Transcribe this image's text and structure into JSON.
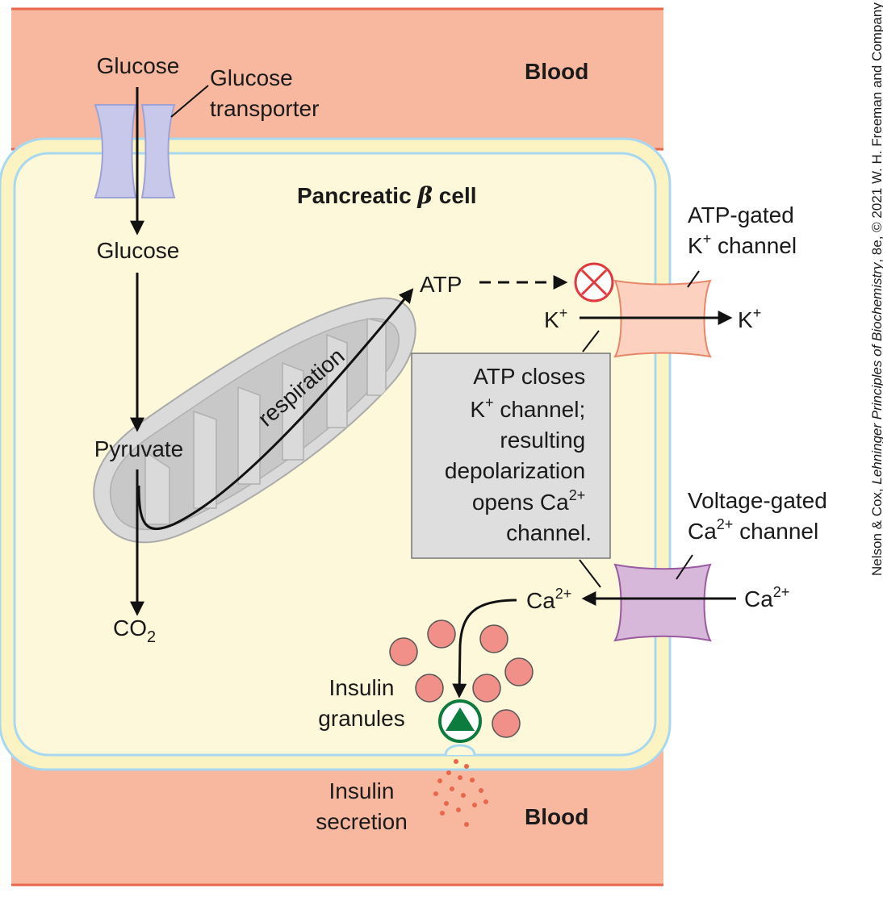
{
  "colors": {
    "blood": "#f8b8a0",
    "blood_edge": "#e8664a",
    "cytoplasm": "#fdf8da",
    "membrane_outer": "#fbf3c2",
    "membrane_line": "#a8d8f0",
    "glucose_transporter": "#c7c8ea",
    "k_channel": "#fcd1c0",
    "ca_channel": "#d7b8da",
    "mitochondrion": "#d9d9d9",
    "granule": "#f09088",
    "block_red": "#e03a3e",
    "secretion_green": "#0c7b3e",
    "note_box": "#dedede"
  },
  "labels": {
    "blood_top": "Blood",
    "blood_bottom": "Blood",
    "glucose_outside": "Glucose",
    "glucose_transporter_line1": "Glucose",
    "glucose_transporter_line2": "transporter",
    "cell_title_prefix": "Pancreatic ",
    "cell_title_beta": "β",
    "cell_title_suffix": " cell",
    "glucose_inside": "Glucose",
    "pyruvate": "Pyruvate",
    "co2_main": "CO",
    "co2_sub": "2",
    "respiration": "respiration",
    "atp": "ATP",
    "k_channel_line1": "ATP-gated",
    "k_channel_line2_main": "K",
    "k_channel_line2_sup": "+",
    "k_channel_line2_rest": " channel",
    "k_inside_main": "K",
    "k_inside_sup": "+",
    "k_outside_main": "K",
    "k_outside_sup": "+",
    "note_line1": "ATP closes",
    "note_line2_main": "K",
    "note_line2_sup": "+",
    "note_line2_rest": " channel;",
    "note_line3": "resulting",
    "note_line4": "depolarization",
    "note_line5_main": "opens Ca",
    "note_line5_sup": "2+",
    "note_line6": "channel.",
    "ca_channel_line1": "Voltage-gated",
    "ca_channel_line2_main": "Ca",
    "ca_channel_line2_sup": "2+",
    "ca_channel_line2_rest": " channel",
    "ca_inside_main": "Ca",
    "ca_inside_sup": "2+",
    "ca_outside_main": "Ca",
    "ca_outside_sup": "2+",
    "granules_line1": "Insulin",
    "granules_line2": "granules",
    "secretion_line1": "Insulin",
    "secretion_line2": "secretion",
    "credit_prefix": "Nelson & Cox, ",
    "credit_book": "Lehninger Principles of Biochemistry",
    "credit_suffix": ", 8e, © 2021 W. H. Freeman and Company"
  }
}
